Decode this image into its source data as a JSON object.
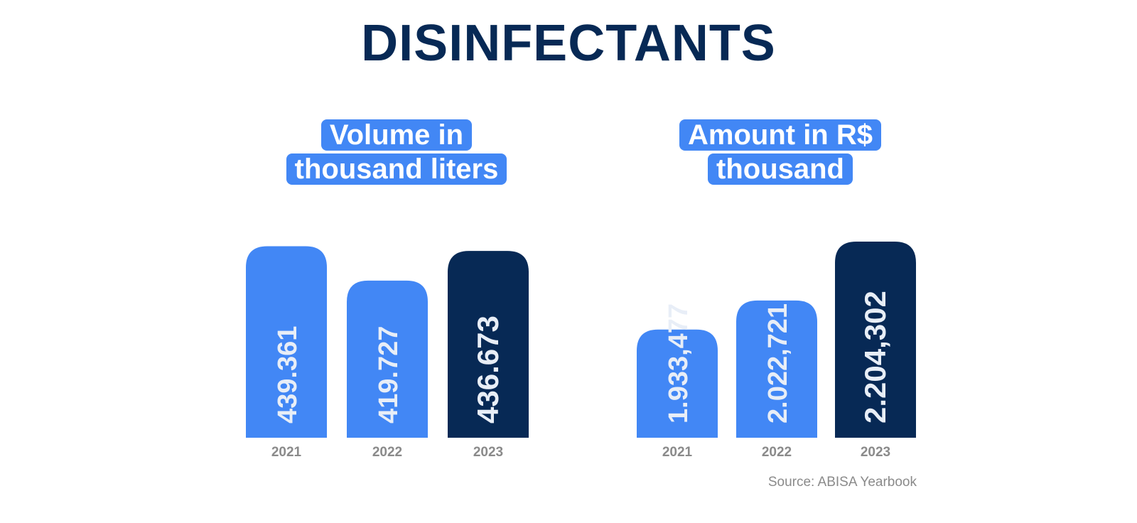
{
  "title": "DISINFECTANTS",
  "source": "Source: ABISA Yearbook",
  "colors": {
    "light_bar": "#4287f5",
    "dark_bar": "#072955",
    "label": "#8a8a8a",
    "value_text": "#e8eef7"
  },
  "chart_data": [
    {
      "type": "bar",
      "title_lines": [
        "Volume in",
        "thousand liters"
      ],
      "categories": [
        "2021",
        "2022",
        "2023"
      ],
      "values": [
        439.361,
        419.727,
        436.673
      ],
      "value_labels": [
        "439.361",
        "419.727",
        "436.673"
      ],
      "highlight": "2023",
      "ylim": [
        330,
        442
      ]
    },
    {
      "type": "bar",
      "title_lines": [
        "Amount in R$",
        "thousand"
      ],
      "categories": [
        "2021",
        "2022",
        "2023"
      ],
      "values": [
        1933477,
        2022721,
        2204302
      ],
      "value_labels": [
        "1.933,477",
        "2.022,721",
        "2.204,302"
      ],
      "highlight": "2023",
      "ylim": [
        1600000,
        2204302
      ]
    }
  ]
}
